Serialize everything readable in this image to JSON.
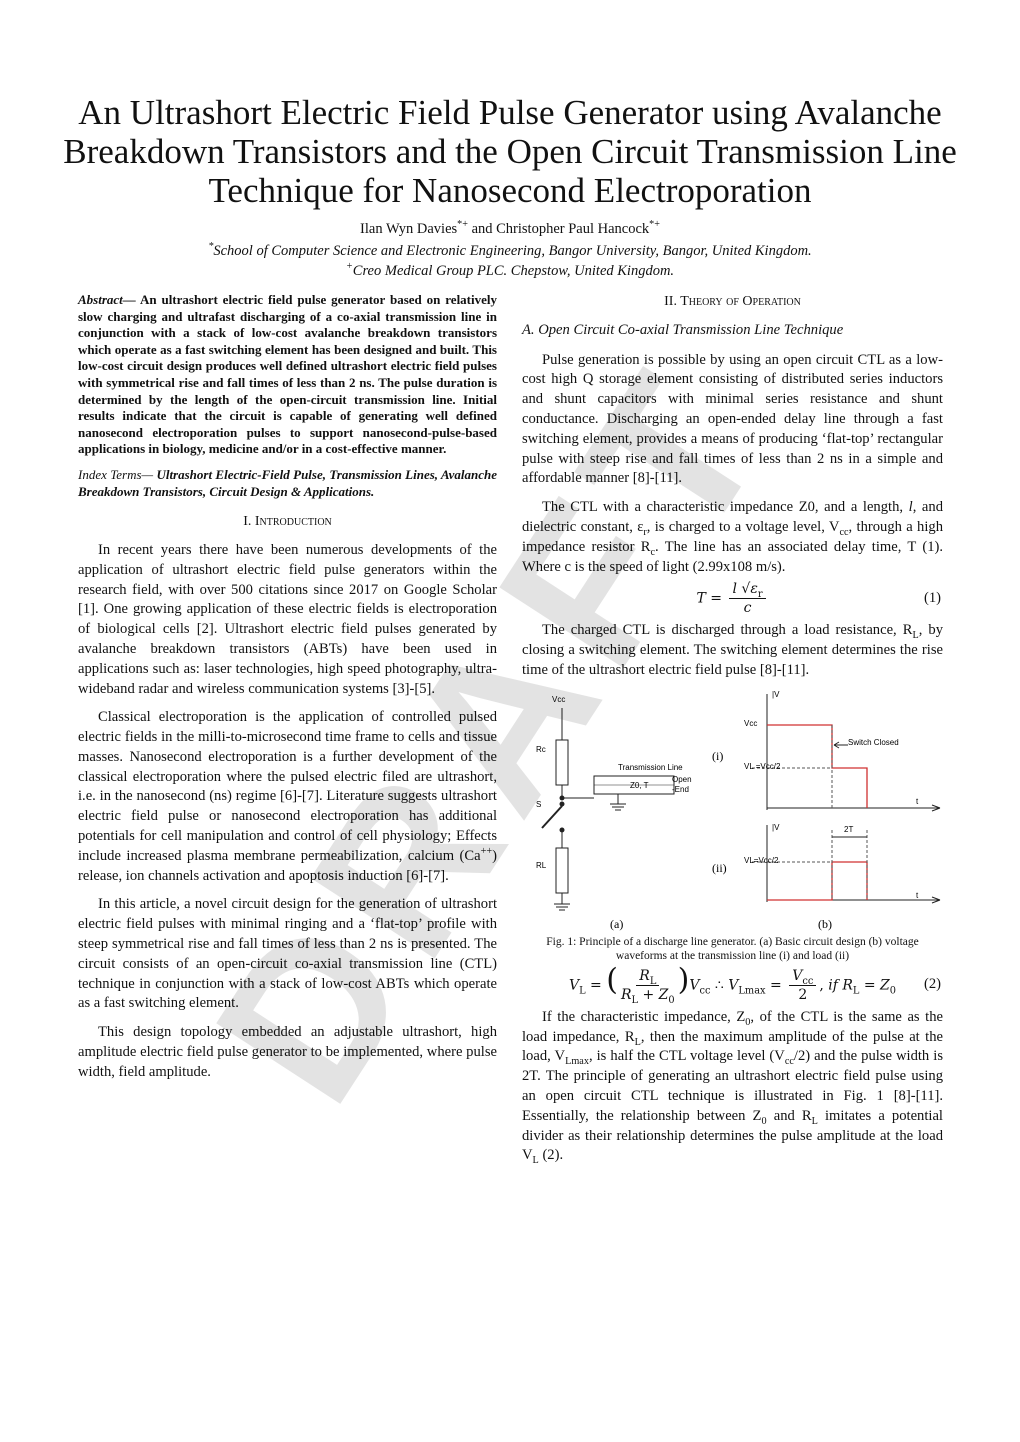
{
  "header": {
    "title": "An Ultrashort Electric Field Pulse Generator using Avalanche Breakdown Transistors and the Open Circuit Transmission Line Technique for Nanosecond Electroporation",
    "authors": [
      "Ilan Wyn Davies",
      {
        "sup": "*+"
      },
      " and Christopher Paul Hancock",
      {
        "sup": "*+"
      }
    ],
    "affiliations": [
      [
        {
          "sup": "*"
        },
        "School of Computer Science and Electronic Engineering, Bangor University, Bangor, United Kingdom."
      ],
      [
        {
          "sup": "+"
        },
        "Creo Medical Group PLC. Chepstow, United Kingdom."
      ]
    ]
  },
  "abstract": {
    "label": "Abstract—",
    "text": " An ultrashort electric field pulse generator based on relatively slow charging and ultrafast discharging of a co-axial transmission line in conjunction with a stack of low-cost avalanche breakdown transistors which operate as a fast switching element has been designed and built. This low-cost circuit design produces well defined ultrashort electric field pulses with symmetrical rise and fall times of less than 2 ns. The pulse duration is determined by the length of the open-circuit transmission line. Initial results indicate that the circuit is capable of generating well defined nanosecond electroporation pulses to support nanosecond-pulse-based applications in biology, medicine and/or in a cost-effective manner."
  },
  "index_terms": {
    "label": "Index Terms—",
    "text": " Ultrashort Electric-Field Pulse, Transmission Lines, Avalanche Breakdown Transistors, Circuit Design & Applications."
  },
  "intro": {
    "heading": "I. Introduction",
    "blocks": [
      {
        "paragraph": [
          "In recent years there have been numerous developments of the application of ultrashort electric field pulse generators within the research field, with over 500 citations since 2017 on Google Scholar [1]. One growing application of these electric fields is electroporation of biological cells [2]. Ultrashort electric field pulses generated by avalanche breakdown transistors (ABTs) have been used in applications such as: laser technologies, high speed photography, ultra-wideband radar and wireless communication systems [3]-[5]."
        ]
      },
      {
        "paragraph": [
          "Classical electroporation is the application of controlled pulsed electric fields in the milli-to-microsecond time frame to cells and tissue masses. Nanosecond electroporation is a further development of the classical electroporation where the pulsed electric filed are ultrashort, i.e. in the nanosecond (ns) regime [6]-[7]. Literature suggests ultrashort electric field pulse or nanosecond electroporation has additional potentials for cell manipulation and control of cell physiology; Effects include increased plasma membrane permeabilization, calcium (Ca",
          {
            "sup": "++"
          },
          ") release, ion channels activation and apoptosis induction [6]-[7]."
        ]
      },
      {
        "paragraph": [
          "In this article, a novel circuit design for the generation of ultrashort electric field pulses with minimal ringing and a ‘flat-top’ profile with steep symmetrical rise and fall times of less than 2 ns is presented. The circuit consists of an open-circuit co-axial transmission line (CTL) technique in conjunction with a stack of low-cost ABTs which operate as a fast switching element."
        ]
      },
      {
        "paragraph": [
          "This design topology embedded an adjustable ultrashort, high amplitude electric field pulse generator to be implemented, where pulse width, field amplitude."
        ]
      }
    ]
  },
  "theory": {
    "heading": "II. Theory of Operation",
    "subheading": "A. Open Circuit Co-axial Transmission Line Technique",
    "blocks": [
      {
        "paragraph": [
          "Pulse generation is possible by using an open circuit CTL as a low-cost high Q storage element consisting of distributed series inductors and shunt capacitors with minimal series resistance and shunt conductance. Discharging an open-ended delay line through a fast switching element, provides a means of producing ‘flat-top’ rectangular pulse with steep rise and fall times of less than 2 ns in a simple and affordable manner [8]-[11]."
        ]
      },
      {
        "paragraph": [
          "The CTL with a characteristic impedance Z0, and a length, ",
          {
            "i": "l"
          },
          ", and dielectric constant, ε",
          {
            "sub": "r"
          },
          ", is charged to a voltage level, V",
          {
            "sub": "cc"
          },
          ", through a high impedance resistor R",
          {
            "sub": "c"
          },
          ". The line has an associated delay time, T (1). Where c is the speed of light (2.99x108 m/s)."
        ]
      },
      {
        "equation": {
          "parts": [
            {
              "i": "T"
            },
            " = ",
            {
              "frac": {
                "num": [
                  {
                    "i": "l"
                  },
                  " √",
                  {
                    "i": "ε"
                  },
                  {
                    "sub": "r"
                  }
                ],
                "den": [
                  {
                    "i": "c"
                  }
                ]
              }
            }
          ],
          "number": "(1)"
        }
      },
      {
        "paragraph": [
          "The charged CTL is discharged through a load resistance, R",
          {
            "sub": "L"
          },
          ", by closing a switching element. The switching element determines the rise time of the ultrashort electric field pulse [8]-[11]."
        ]
      },
      {
        "figure": {
          "labels": [
            "Vcc",
            "Rc",
            "Transmission Line",
            "Z0, T",
            "Open",
            "-End",
            "S",
            "RL",
            "(i)",
            "(ii)",
            "|V",
            "Vcc",
            "Switch Closed",
            "VL =Vcc/2",
            "t",
            "|V",
            "2T",
            "VL=Vcc/2",
            "t",
            "(a)",
            "(b)"
          ],
          "caption": "Fig. 1: Principle of a discharge line generator. (a) Basic circuit design (b) voltage waveforms at the transmission line (i) and load (ii)"
        }
      },
      {
        "equation": {
          "parts": [
            {
              "i": "V"
            },
            {
              "sub": "L"
            },
            " = ",
            {
              "big": "("
            },
            {
              "frac": {
                "num": [
                  {
                    "i": "R"
                  },
                  {
                    "sub": "L"
                  }
                ],
                "den": [
                  {
                    "i": "R"
                  },
                  {
                    "sub": "L"
                  },
                  " + ",
                  {
                    "i": "Z"
                  },
                  {
                    "sub": "0"
                  }
                ]
              }
            },
            {
              "big": ")"
            },
            {
              "i": "V"
            },
            {
              "sub": "cc"
            },
            "   ∴ ",
            {
              "i": "V"
            },
            {
              "sub": "Lmax"
            },
            " = ",
            {
              "frac": {
                "num": [
                  {
                    "i": "V"
                  },
                  {
                    "sub": "cc"
                  }
                ],
                "den": [
                  "2"
                ]
              }
            },
            ", ",
            {
              "i": "if R"
            },
            {
              "sub": "L"
            },
            " = ",
            {
              "i": "Z"
            },
            {
              "sub": "0"
            }
          ],
          "number": "(2)"
        }
      },
      {
        "paragraph": [
          "If the characteristic impedance, Z",
          {
            "sub": "0"
          },
          ", of the CTL is the same as the load impedance, R",
          {
            "sub": "L"
          },
          ", then the maximum amplitude of the pulse at the load, V",
          {
            "sub": "Lmax"
          },
          ", is half the CTL voltage level (V",
          {
            "sub": "cc"
          },
          "/2) and the pulse width is 2T. The principle of generating an ultrashort electric field pulse using an open circuit CTL technique is illustrated in Fig. 1 [8]-[11]. Essentially, the relationship between Z",
          {
            "sub": "0"
          },
          " and R",
          {
            "sub": "L"
          },
          " imitates a potential divider as their relationship determines the pulse amplitude at the load V",
          {
            "sub": "L"
          },
          " (2)."
        ]
      }
    ]
  },
  "watermark": "DRAFT"
}
